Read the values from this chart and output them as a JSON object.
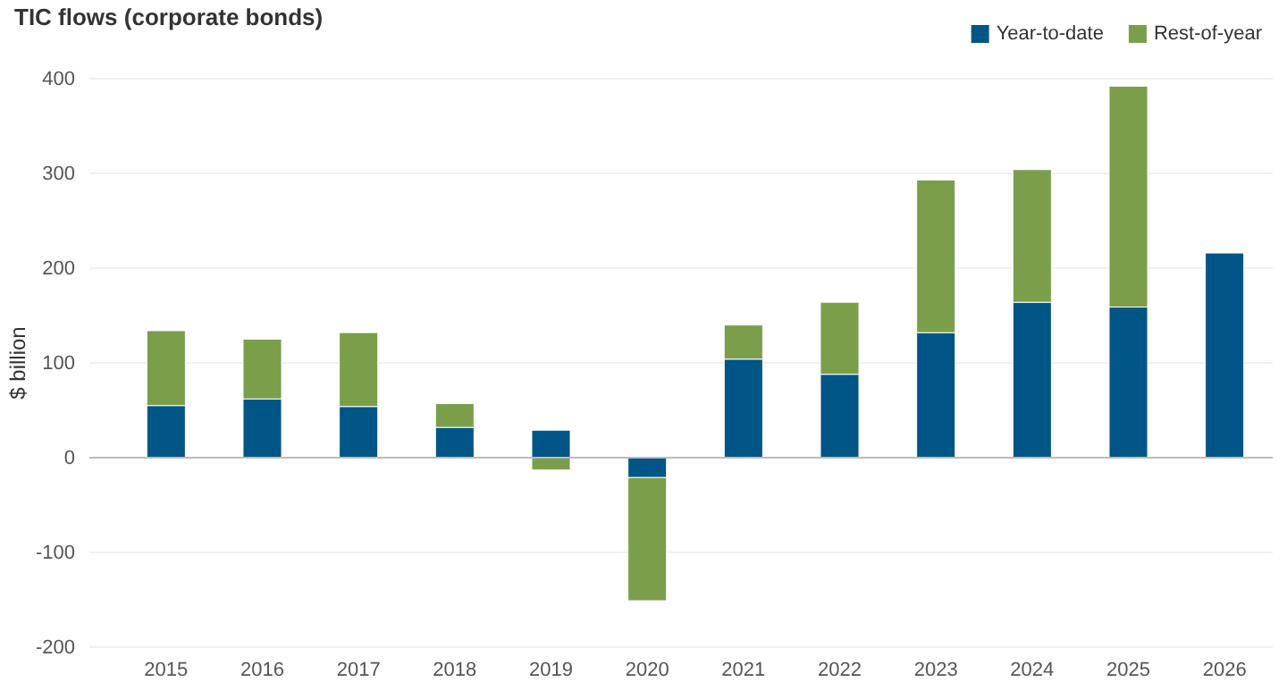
{
  "chart_data": {
    "type": "bar",
    "title": "TIC flows (corporate bonds)",
    "ylabel": "$ billion",
    "categories": [
      "2015",
      "2016",
      "2017",
      "2018",
      "2019",
      "2020",
      "2021",
      "2022",
      "2023",
      "2024",
      "2025",
      "2026"
    ],
    "stacked": true,
    "series": [
      {
        "name": "Year-to-date",
        "color": "#005587",
        "values": [
          55,
          62,
          54,
          32,
          29,
          -21,
          104,
          88,
          132,
          164,
          159,
          216
        ]
      },
      {
        "name": "Rest-of-year",
        "color": "#7a9e4a",
        "values": [
          79,
          63,
          78,
          25,
          -13,
          -130,
          36,
          76,
          161,
          140,
          233,
          null
        ]
      }
    ],
    "ylim": [
      -200,
      400
    ],
    "yticks": [
      -200,
      -100,
      0,
      100,
      200,
      300,
      400
    ],
    "grid": "y",
    "legend": "top right"
  }
}
